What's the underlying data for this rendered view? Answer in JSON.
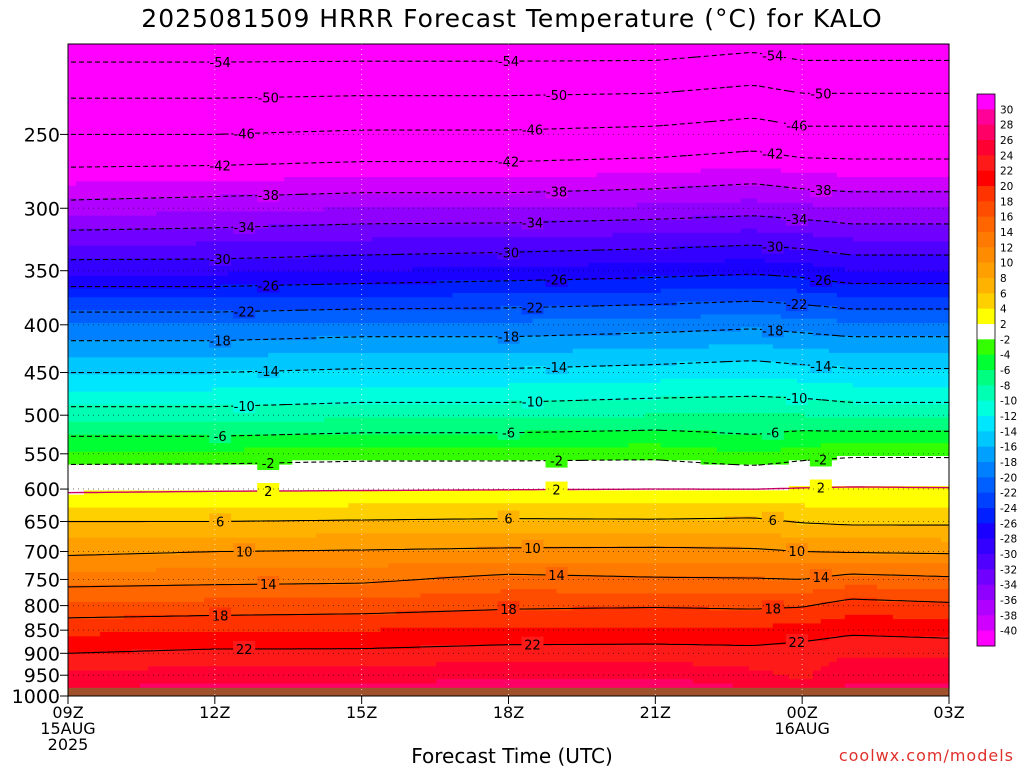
{
  "title": "2025081509 HRRR Forecast Temperature (°C) for KALO",
  "credit": "coolwx.com/models",
  "chart_data": {
    "type": "heatmap",
    "title": "2025081509 HRRR Forecast Temperature (°C) for KALO",
    "xlabel": "Forecast Time (UTC)",
    "ylabel": "",
    "x_ticks": [
      {
        "hour": 0,
        "label": "09Z",
        "sub": [
          "15AUG",
          "2025"
        ]
      },
      {
        "hour": 3,
        "label": "12Z",
        "sub": []
      },
      {
        "hour": 6,
        "label": "15Z",
        "sub": []
      },
      {
        "hour": 9,
        "label": "18Z",
        "sub": []
      },
      {
        "hour": 12,
        "label": "21Z",
        "sub": []
      },
      {
        "hour": 15,
        "label": "00Z",
        "sub": [
          "16AUG"
        ]
      },
      {
        "hour": 18,
        "label": "03Z",
        "sub": []
      }
    ],
    "y_ticks": [
      250,
      300,
      350,
      400,
      450,
      500,
      550,
      600,
      650,
      700,
      750,
      800,
      850,
      900,
      950,
      1000
    ],
    "ylim": [
      200,
      1000
    ],
    "xlim": [
      0,
      18
    ],
    "y_scale": "log",
    "y_inverted": true,
    "grid": true,
    "surface_pressure_hpa": 980,
    "colorbar": {
      "labels": [
        30,
        28,
        26,
        24,
        22,
        20,
        18,
        16,
        14,
        12,
        10,
        8,
        6,
        4,
        2,
        -2,
        -4,
        -6,
        -8,
        -10,
        -12,
        -14,
        -16,
        -18,
        -20,
        -22,
        -24,
        -26,
        -28,
        -30,
        -32,
        -34,
        -36,
        -38,
        -40
      ],
      "colors": [
        "#ff00ff",
        "#ff0099",
        "#ff0066",
        "#ff0033",
        "#ff1a1a",
        "#ff0000",
        "#ff3300",
        "#ff4d00",
        "#ff6600",
        "#ff7a00",
        "#ff8c00",
        "#ffa000",
        "#ffb300",
        "#ffd000",
        "#ffff00",
        "#ffffff",
        "#33ff00",
        "#00ff33",
        "#00ff80",
        "#00ffb3",
        "#00ffdd",
        "#00e6ff",
        "#00c8ff",
        "#00a0ff",
        "#0080ff",
        "#0060ff",
        "#0040ff",
        "#0020ff",
        "#1a00ff",
        "#3300ff",
        "#5000ff",
        "#7000ff",
        "#9000ff",
        "#b000ff",
        "#d000ff",
        "#ff00ff"
      ]
    },
    "contour_values": [
      -54,
      -50,
      -46,
      -42,
      -38,
      -34,
      -30,
      -26,
      -22,
      -18,
      -14,
      -10,
      -6,
      -2,
      2,
      6,
      10,
      14,
      18,
      22
    ],
    "profile_hours": [
      0,
      3,
      6,
      9,
      12,
      14,
      15,
      16,
      18
    ],
    "temperature_profiles": [
      {
        "p": 200,
        "t": [
          -56,
          -56,
          -56,
          -56,
          -56,
          -55,
          -56,
          -56,
          -56
        ]
      },
      {
        "p": 250,
        "t": [
          -46,
          -46,
          -45.5,
          -45.5,
          -45,
          -44,
          -45,
          -45,
          -45
        ]
      },
      {
        "p": 300,
        "t": [
          -37,
          -36.5,
          -36,
          -36,
          -35.5,
          -35,
          -35.5,
          -36,
          -36
        ]
      },
      {
        "p": 350,
        "t": [
          -28.5,
          -28.5,
          -28,
          -27.5,
          -27,
          -26.5,
          -27,
          -28,
          -28
        ]
      },
      {
        "p": 400,
        "t": [
          -20,
          -20,
          -19.5,
          -19.5,
          -19,
          -18.5,
          -19,
          -19.5,
          -19.5
        ]
      },
      {
        "p": 450,
        "t": [
          -14,
          -14,
          -13.5,
          -13.5,
          -13,
          -12.5,
          -13,
          -13.5,
          -13.5
        ]
      },
      {
        "p": 500,
        "t": [
          -9,
          -9,
          -8.5,
          -8.5,
          -8,
          -8,
          -8,
          -8.5,
          -8.5
        ]
      },
      {
        "p": 550,
        "t": [
          -3.5,
          -3.5,
          -3,
          -3,
          -2.8,
          -4,
          -3,
          -2.5,
          -2.5
        ]
      },
      {
        "p": 600,
        "t": [
          1.5,
          1.7,
          1.8,
          1.9,
          2,
          2,
          2.2,
          2.3,
          2.2
        ]
      },
      {
        "p": 650,
        "t": [
          6,
          6,
          6.2,
          6.4,
          6.3,
          6.5,
          5.8,
          5.5,
          5.5
        ]
      },
      {
        "p": 700,
        "t": [
          9.5,
          10,
          10.2,
          10.5,
          10.6,
          10.4,
          10,
          9.8,
          9.6
        ]
      },
      {
        "p": 750,
        "t": [
          13,
          13.3,
          13.5,
          14.8,
          14.3,
          14.2,
          14,
          15,
          14.5
        ]
      },
      {
        "p": 800,
        "t": [
          16.5,
          16.8,
          17,
          17.6,
          17.8,
          17.6,
          17.8,
          19,
          18.5
        ]
      },
      {
        "p": 850,
        "t": [
          19.5,
          19.8,
          20,
          20.3,
          20.5,
          20.4,
          20.8,
          21.5,
          21.2
        ]
      },
      {
        "p": 900,
        "t": [
          22,
          22.5,
          22.5,
          23,
          23,
          22.8,
          23.2,
          23.8,
          23.5
        ]
      },
      {
        "p": 950,
        "t": [
          24.5,
          25,
          25,
          25.5,
          25.5,
          24.5,
          23.5,
          25.5,
          25.5
        ]
      },
      {
        "p": 980,
        "t": [
          26,
          26.5,
          26.5,
          27,
          27.5,
          26,
          25,
          26.5,
          26.5
        ]
      }
    ]
  }
}
